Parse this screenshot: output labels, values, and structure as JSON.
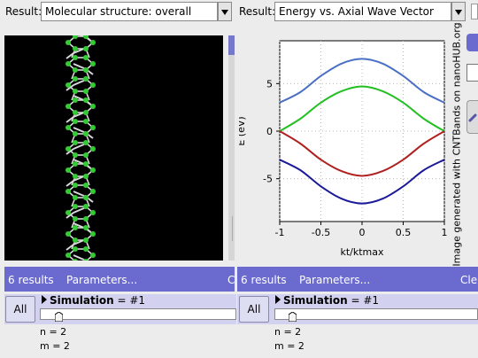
{
  "left": {
    "result_label": "Result:",
    "result_value": "Molecular structure: overall",
    "results_count": "6 results",
    "parameters_label": "Parameters...",
    "clear_label": "C",
    "all_label": "All",
    "simulation_label": "Simulation",
    "simulation_value": "= #1",
    "params": [
      "n = 2",
      "m = 2"
    ]
  },
  "right": {
    "result_label": "Result:",
    "result_value": "Energy vs. Axial Wave Vector",
    "results_count": "6 results",
    "parameters_label": "Parameters...",
    "clear_label": "Cle",
    "all_label": "All",
    "simulation_label": "Simulation",
    "simulation_value": "= #1",
    "params": [
      "n = 2",
      "m = 2"
    ]
  },
  "watermark": "Image generated with CNTBands on nanoHUB.org",
  "colors": {
    "accent": "#6b6bcf",
    "panel": "#d2d2f0",
    "atom": "#33cc33",
    "bond": "#d8d8d8"
  },
  "chart_data": {
    "type": "line",
    "title": "",
    "xlabel": "kt/ktmax",
    "ylabel": "E (eV)",
    "xlim": [
      -1,
      1
    ],
    "ylim": [
      -9.5,
      9.5
    ],
    "xticks": [
      "-1",
      "-0.5",
      "0",
      "0.5",
      "1"
    ],
    "yticks": [
      "5",
      "0",
      "-5"
    ],
    "x": [
      -1,
      -0.75,
      -0.5,
      -0.25,
      0,
      0.25,
      0.5,
      0.75,
      1
    ],
    "series": [
      {
        "color": "#4a6fc4",
        "values": [
          3.0,
          4.1,
          5.8,
          7.1,
          7.6,
          7.1,
          5.8,
          4.1,
          3.0
        ]
      },
      {
        "color": "#22c022",
        "values": [
          0.0,
          1.3,
          3.0,
          4.2,
          4.7,
          4.2,
          3.0,
          1.3,
          0.0
        ]
      },
      {
        "color": "#b02020",
        "values": [
          0.0,
          -1.3,
          -3.0,
          -4.2,
          -4.7,
          -4.2,
          -3.0,
          -1.3,
          0.0
        ]
      },
      {
        "color": "#1a1a9a",
        "values": [
          -3.0,
          -4.1,
          -5.8,
          -7.1,
          -7.6,
          -7.1,
          -5.8,
          -4.1,
          -3.0
        ]
      }
    ]
  }
}
